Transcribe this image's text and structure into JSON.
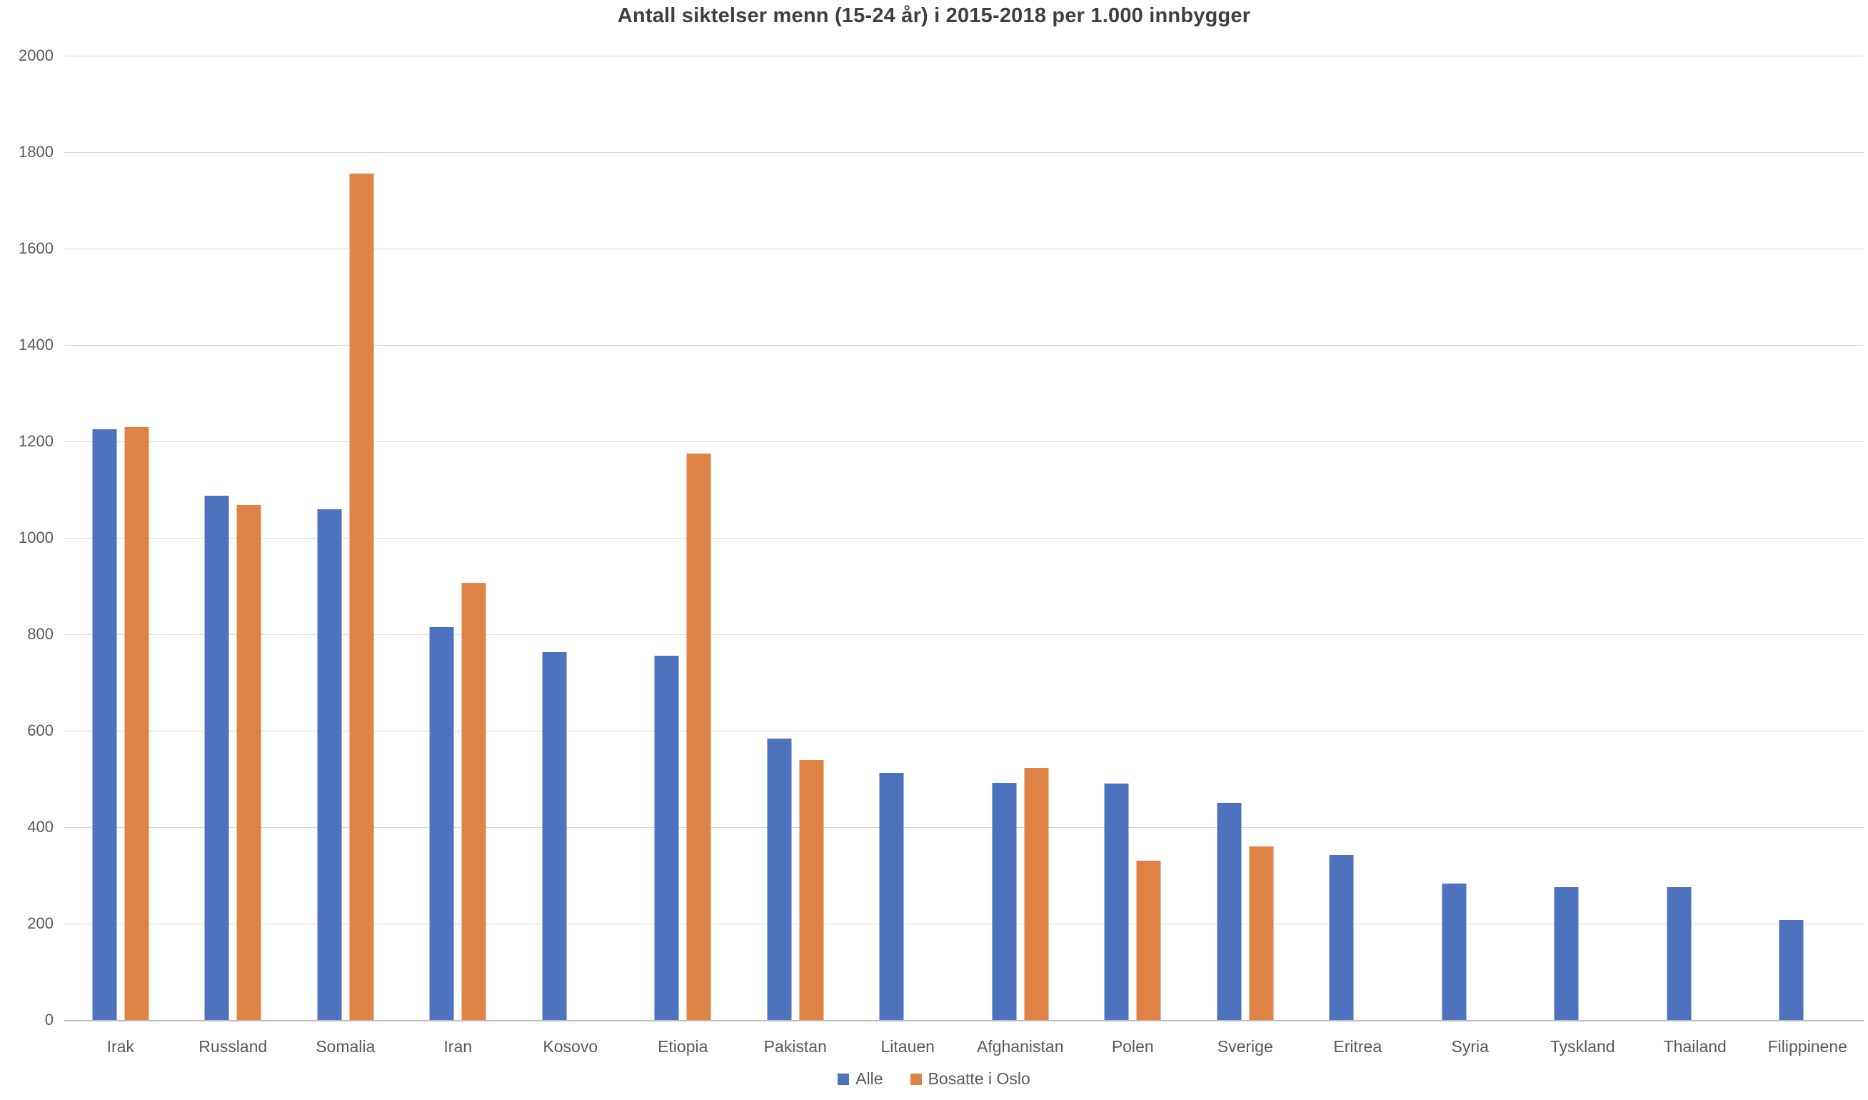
{
  "chart_data": {
    "type": "bar",
    "title": "Antall siktelser menn (15-24 år) i 2015-2018 per 1.000 innbygger",
    "categories": [
      "Irak",
      "Russland",
      "Somalia",
      "Iran",
      "Kosovo",
      "Etiopia",
      "Pakistan",
      "Litauen",
      "Afghanistan",
      "Polen",
      "Sverige",
      "Eritrea",
      "Syria",
      "Tyskland",
      "Thailand",
      "Filippinene"
    ],
    "series": [
      {
        "name": "Alle",
        "color": "#4d73be",
        "values": [
          1225,
          1087,
          1060,
          815,
          763,
          756,
          584,
          512,
          492,
          490,
          451,
          342,
          283,
          276,
          276,
          208
        ]
      },
      {
        "name": "Bosatte i Oslo",
        "color": "#df8245",
        "values": [
          1230,
          1068,
          1756,
          907,
          null,
          1175,
          539,
          null,
          523,
          330,
          360,
          null,
          null,
          null,
          null,
          null
        ]
      }
    ],
    "xlabel": "",
    "ylabel": "",
    "ylim": [
      0,
      2000
    ],
    "ytick_step": 200,
    "grid": true,
    "legend_position": "bottom",
    "colors": {
      "gridline": "#d9d9d9",
      "axis_line": "#bfbfbf",
      "tick_text": "#595959",
      "title_text": "#3f3f3f",
      "background": "#ffffff"
    }
  }
}
